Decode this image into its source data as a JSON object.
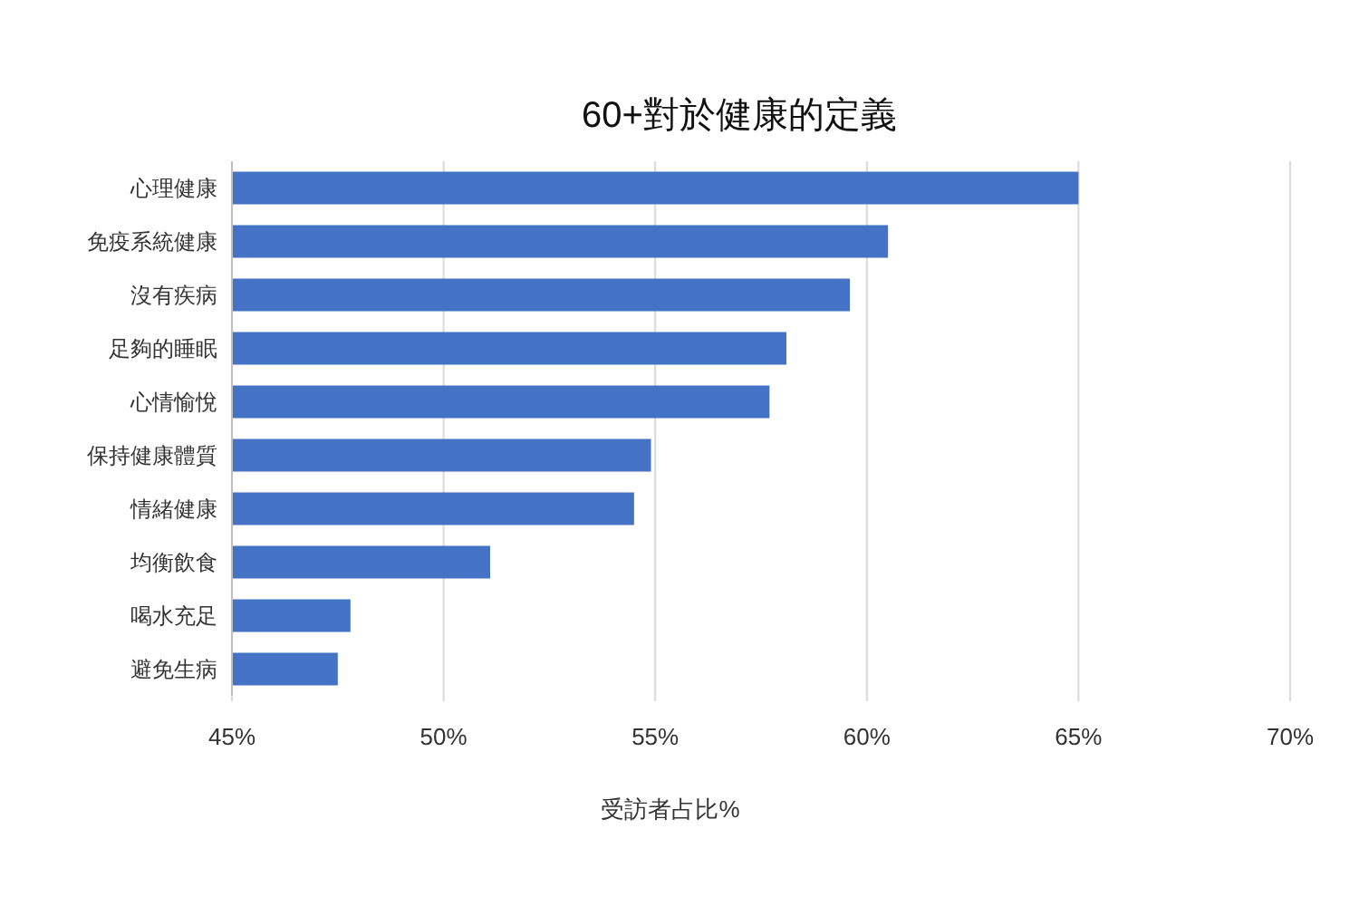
{
  "chart_data": {
    "type": "bar",
    "orientation": "horizontal",
    "title": "60+對於健康的定義",
    "xlabel": "受訪者占比%",
    "categories": [
      "心理健康",
      "免疫系統健康",
      "沒有疾病",
      "足夠的睡眠",
      "心情愉悅",
      "保持健康體質",
      "情緒健康",
      "均衡飲食",
      "喝水充足",
      "避免生病"
    ],
    "values": [
      65.0,
      60.5,
      59.6,
      58.1,
      57.7,
      54.9,
      54.5,
      51.1,
      47.8,
      47.5
    ],
    "color": "#4472c4",
    "xlim": [
      45,
      70
    ],
    "xticks": [
      {
        "value": 45,
        "label": "45%"
      },
      {
        "value": 50,
        "label": "50%"
      },
      {
        "value": 55,
        "label": "55%"
      },
      {
        "value": 60,
        "label": "60%"
      },
      {
        "value": 65,
        "label": "65%"
      },
      {
        "value": 70,
        "label": "70%"
      }
    ],
    "grid": "x"
  }
}
